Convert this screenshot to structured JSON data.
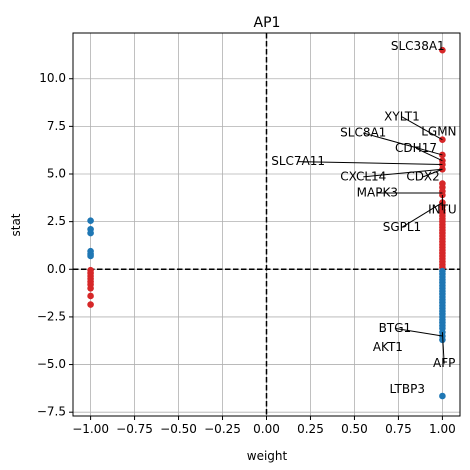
{
  "chart_data": {
    "type": "scatter",
    "title": "AP1",
    "xlabel": "weight",
    "ylabel": "stat",
    "xlim": [
      -1.1,
      1.1
    ],
    "ylim": [
      -7.7,
      12.4
    ],
    "grid": true,
    "xticks": [
      -1.0,
      -0.75,
      -0.5,
      -0.25,
      0.0,
      0.25,
      0.5,
      0.75,
      1.0
    ],
    "xtick_labels": [
      "−1.00",
      "−0.75",
      "−0.50",
      "−0.25",
      "0.00",
      "0.25",
      "0.50",
      "0.75",
      "1.00"
    ],
    "yticks": [
      -7.5,
      -5.0,
      -2.5,
      0.0,
      2.5,
      5.0,
      7.5,
      10.0
    ],
    "ytick_labels": [
      "−7.5",
      "−5.0",
      "−2.5",
      "0.0",
      "2.5",
      "5.0",
      "7.5",
      "10.0"
    ],
    "reference_lines": {
      "x": 0,
      "y": 0,
      "style": "dashed",
      "color": "#000000"
    },
    "colors": {
      "positive": "#d62728",
      "negative": "#1f77b4"
    },
    "series": [
      {
        "color": "#d62728",
        "points": [
          [
            -1,
            -0.05
          ],
          [
            -1,
            -0.2
          ],
          [
            -1,
            -0.35
          ],
          [
            -1,
            -0.5
          ],
          [
            -1,
            -0.65
          ],
          [
            -1,
            -0.8
          ],
          [
            -1,
            -1.0
          ],
          [
            -1,
            -1.4
          ],
          [
            -1,
            -1.85
          ],
          [
            1,
            11.5
          ],
          [
            1,
            6.8
          ],
          [
            1,
            6.0
          ],
          [
            1,
            5.7
          ],
          [
            1,
            5.5
          ],
          [
            1,
            5.25
          ],
          [
            1,
            4.5
          ],
          [
            1,
            4.3
          ],
          [
            1,
            4.1
          ],
          [
            1,
            3.9
          ],
          [
            1,
            3.5
          ],
          [
            1,
            3.3
          ],
          [
            1,
            3.1
          ],
          [
            1,
            2.95
          ],
          [
            1,
            2.8
          ],
          [
            1,
            2.65
          ],
          [
            1,
            2.5
          ],
          [
            1,
            2.35
          ],
          [
            1,
            2.2
          ],
          [
            1,
            2.05
          ],
          [
            1,
            1.9
          ],
          [
            1,
            1.75
          ],
          [
            1,
            1.6
          ],
          [
            1,
            1.45
          ],
          [
            1,
            1.3
          ],
          [
            1,
            1.15
          ],
          [
            1,
            1.0
          ],
          [
            1,
            0.85
          ],
          [
            1,
            0.7
          ],
          [
            1,
            0.55
          ],
          [
            1,
            0.4
          ],
          [
            1,
            0.25
          ],
          [
            1,
            0.1
          ]
        ]
      },
      {
        "color": "#1f77b4",
        "points": [
          [
            -1,
            2.55
          ],
          [
            -1,
            2.1
          ],
          [
            -1,
            1.9
          ],
          [
            -1,
            0.95
          ],
          [
            -1,
            0.8
          ],
          [
            -1,
            0.7
          ],
          [
            1,
            -0.1
          ],
          [
            1,
            -0.25
          ],
          [
            1,
            -0.4
          ],
          [
            1,
            -0.55
          ],
          [
            1,
            -0.7
          ],
          [
            1,
            -0.85
          ],
          [
            1,
            -1.0
          ],
          [
            1,
            -1.15
          ],
          [
            1,
            -1.3
          ],
          [
            1,
            -1.45
          ],
          [
            1,
            -1.6
          ],
          [
            1,
            -1.75
          ],
          [
            1,
            -1.9
          ],
          [
            1,
            -2.05
          ],
          [
            1,
            -2.2
          ],
          [
            1,
            -2.35
          ],
          [
            1,
            -2.5
          ],
          [
            1,
            -2.65
          ],
          [
            1,
            -2.8
          ],
          [
            1,
            -2.95
          ],
          [
            1,
            -3.1
          ],
          [
            1,
            -3.3
          ],
          [
            1,
            -3.5
          ],
          [
            1,
            -3.7
          ],
          [
            1,
            -6.65
          ]
        ]
      }
    ],
    "annotations": [
      {
        "text": "SLC38A1",
        "point": [
          1.0,
          11.5
        ],
        "label": [
          0.86,
          11.7
        ],
        "arrow": false
      },
      {
        "text": "XYLT1",
        "point": [
          1.0,
          6.8
        ],
        "label": [
          0.77,
          8.0
        ],
        "arrow": true
      },
      {
        "text": "LGMN",
        "point": [
          1.0,
          6.8
        ],
        "label": [
          0.98,
          7.2
        ],
        "arrow": false
      },
      {
        "text": "SLC8A1",
        "point": [
          1.0,
          6.0
        ],
        "label": [
          0.55,
          7.15
        ],
        "arrow": true
      },
      {
        "text": "CDH17",
        "point": [
          1.0,
          5.7
        ],
        "label": [
          0.85,
          6.35
        ],
        "arrow": true
      },
      {
        "text": "SLC7A11",
        "point": [
          1.0,
          5.5
        ],
        "label": [
          0.18,
          5.65
        ],
        "arrow": true
      },
      {
        "text": "CDX2",
        "point": [
          1.0,
          5.25
        ],
        "label": [
          0.89,
          4.85
        ],
        "arrow": true
      },
      {
        "text": "CXCL14",
        "point": [
          1.0,
          5.25
        ],
        "label": [
          0.55,
          4.85
        ],
        "arrow": true
      },
      {
        "text": "MAPK3",
        "point": [
          1.0,
          4.0
        ],
        "label": [
          0.63,
          4.0
        ],
        "arrow": true
      },
      {
        "text": "INTU",
        "point": [
          1.0,
          3.9
        ],
        "label": [
          1.0,
          3.1
        ],
        "arrow": true
      },
      {
        "text": "SGPL1",
        "point": [
          1.0,
          3.5
        ],
        "label": [
          0.77,
          2.2
        ],
        "arrow": true
      },
      {
        "text": "BTG1",
        "point": [
          1.0,
          -3.5
        ],
        "label": [
          0.73,
          -3.1
        ],
        "arrow": true
      },
      {
        "text": "AKT1",
        "point": [
          1.0,
          -3.7
        ],
        "label": [
          0.69,
          -4.1
        ],
        "arrow": false
      },
      {
        "text": "AFP",
        "point": [
          1.0,
          -3.3
        ],
        "label": [
          1.01,
          -4.95
        ],
        "arrow": true
      },
      {
        "text": "LTBP3",
        "point": [
          1.0,
          -6.65
        ],
        "label": [
          0.8,
          -6.3
        ],
        "arrow": false
      }
    ]
  }
}
